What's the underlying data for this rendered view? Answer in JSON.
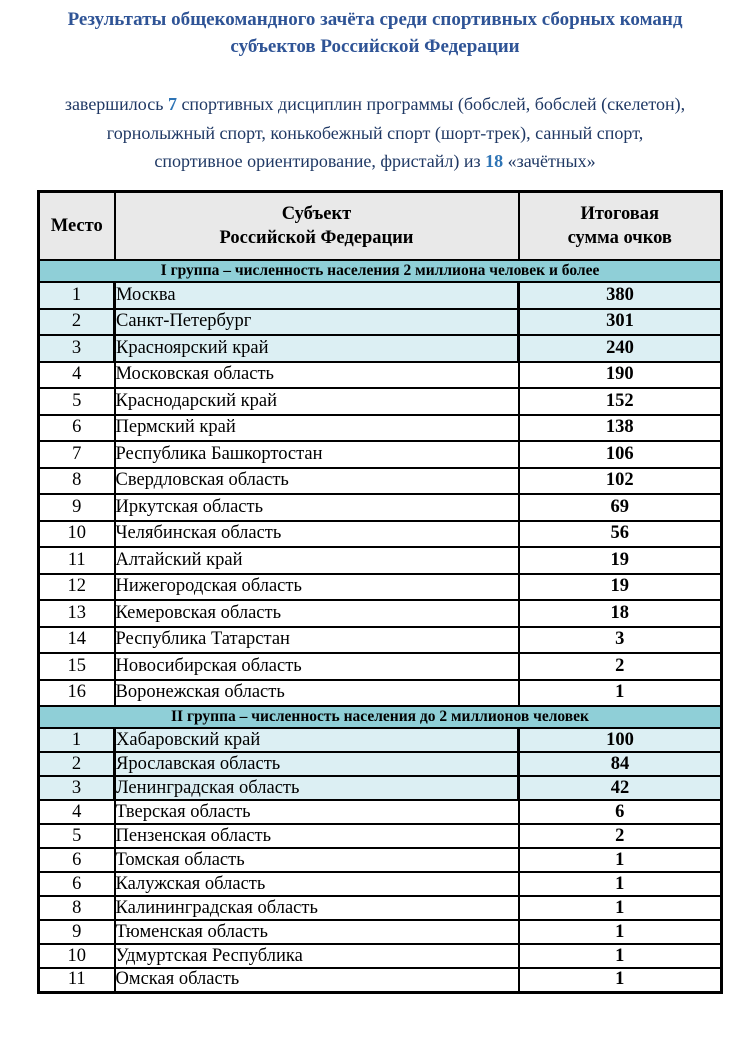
{
  "page": {
    "title_line1": "Результаты общекомандного зачёта среди спортивных сборных команд",
    "title_line2": "субъектов Российской Федерации",
    "intro": {
      "l1a": "завершилось ",
      "l1b": "7",
      "l1c": " спортивных дисциплин программы (бобслей, бобслей (скелетон),",
      "l2": "горнолыжный спорт, конькобежный спорт (шорт-трек), санный спорт,",
      "l3a": "спортивное ориентирование, фристайл) из ",
      "l3b": "18",
      "l3c": " «зачётных»"
    }
  },
  "colors": {
    "title_blue": "#2F5496",
    "body_navy": "#1F3864",
    "accent_blue": "#2E74B5",
    "group_header_teal": "#8FCFD7",
    "highlight_cyan": "#DCEFF3",
    "table_header_gray": "#E9E9E9",
    "border_black": "#000000"
  },
  "table": {
    "headers": {
      "place": "Место",
      "subject_line1": "Субъект",
      "subject_line2": "Российской Федерации",
      "score_line1": "Итоговая",
      "score_line2": "сумма очков"
    },
    "groups": [
      {
        "label": "I группа – численность населения 2 миллиона человек и более",
        "rows": [
          {
            "place": "1",
            "subject": "Москва",
            "score": "380",
            "highlight": true
          },
          {
            "place": "2",
            "subject": "Санкт-Петербург",
            "score": "301",
            "highlight": true
          },
          {
            "place": "3",
            "subject": "Красноярский край",
            "score": "240",
            "highlight": true
          },
          {
            "place": "4",
            "subject": "Московская область",
            "score": "190",
            "highlight": false
          },
          {
            "place": "5",
            "subject": "Краснодарский край",
            "score": "152",
            "highlight": false
          },
          {
            "place": "6",
            "subject": "Пермский край",
            "score": "138",
            "highlight": false
          },
          {
            "place": "7",
            "subject": "Республика Башкортостан",
            "score": "106",
            "highlight": false
          },
          {
            "place": "8",
            "subject": "Свердловская область",
            "score": "102",
            "highlight": false
          },
          {
            "place": "9",
            "subject": "Иркутская область",
            "score": "69",
            "highlight": false
          },
          {
            "place": "10",
            "subject": "Челябинская область",
            "score": "56",
            "highlight": false
          },
          {
            "place": "11",
            "subject": "Алтайский край",
            "score": "19",
            "highlight": false
          },
          {
            "place": "12",
            "subject": "Нижегородская область",
            "score": "19",
            "highlight": false
          },
          {
            "place": "13",
            "subject": "Кемеровская область",
            "score": "18",
            "highlight": false
          },
          {
            "place": "14",
            "subject": "Республика Татарстан",
            "score": "3",
            "highlight": false
          },
          {
            "place": "15",
            "subject": "Новосибирская область",
            "score": "2",
            "highlight": false
          },
          {
            "place": "16",
            "subject": "Воронежская область",
            "score": "1",
            "highlight": false
          }
        ]
      },
      {
        "label": "II группа – численность населения до 2 миллионов человек",
        "rows": [
          {
            "place": "1",
            "subject": "Хабаровский край",
            "score": "100",
            "highlight": true
          },
          {
            "place": "2",
            "subject": "Ярославская область",
            "score": "84",
            "highlight": true
          },
          {
            "place": "3",
            "subject": "Ленинградская область",
            "score": "42",
            "highlight": true
          },
          {
            "place": "4",
            "subject": "Тверская область",
            "score": "6",
            "highlight": false
          },
          {
            "place": "5",
            "subject": "Пензенская область",
            "score": "2",
            "highlight": false
          },
          {
            "place": "6",
            "subject": "Томская область",
            "score": "1",
            "highlight": false
          },
          {
            "place": "6",
            "subject": "Калужская область",
            "score": "1",
            "highlight": false
          },
          {
            "place": "8",
            "subject": "Калининградская область",
            "score": "1",
            "highlight": false
          },
          {
            "place": "9",
            "subject": "Тюменская область",
            "score": "1",
            "highlight": false
          },
          {
            "place": "10",
            "subject": "Удмуртская Республика",
            "score": "1",
            "highlight": false
          },
          {
            "place": "11",
            "subject": "Омская область",
            "score": "1",
            "highlight": false
          }
        ]
      }
    ]
  }
}
